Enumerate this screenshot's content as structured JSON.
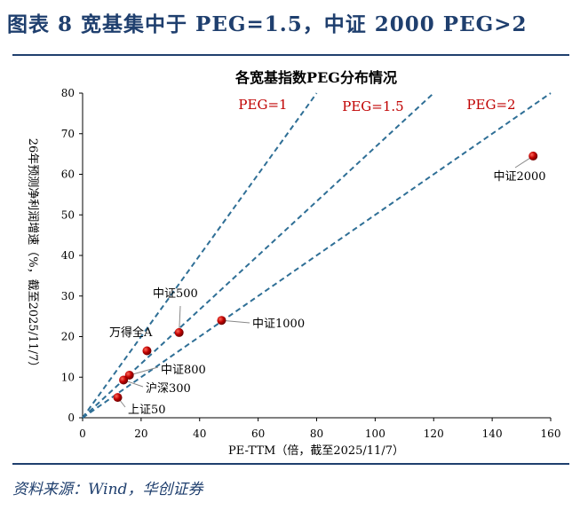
{
  "figure_title": "图表 8   宽基集中于 PEG=1.5，中证 2000 PEG>2",
  "source": "资料来源：Wind，华创证券",
  "chart_data": {
    "type": "scatter",
    "title": "各宽基指数PEG分布情况",
    "xlabel": "PE-TTM（倍，截至2025/11/7）",
    "ylabel": "26年预测净利润增速（%，截至2025/11/7）",
    "xlim": [
      0,
      160
    ],
    "ylim": [
      0,
      80
    ],
    "xticks": [
      0,
      20,
      40,
      60,
      80,
      100,
      120,
      140,
      160
    ],
    "yticks": [
      0,
      10,
      20,
      30,
      40,
      50,
      60,
      70,
      80
    ],
    "grid": false,
    "reference_lines": [
      {
        "label": "PEG=1",
        "peg": 1
      },
      {
        "label": "PEG=1.5",
        "peg": 1.5
      },
      {
        "label": "PEG=2",
        "peg": 2
      }
    ],
    "points": [
      {
        "name": "中证2000",
        "x": 154,
        "y": 64.5
      },
      {
        "name": "中证1000",
        "x": 47.5,
        "y": 24
      },
      {
        "name": "中证500",
        "x": 33,
        "y": 21
      },
      {
        "name": "万得全A",
        "x": 22,
        "y": 16.5
      },
      {
        "name": "中证800",
        "x": 16,
        "y": 10.5
      },
      {
        "name": "沪深300",
        "x": 14,
        "y": 9.3
      },
      {
        "name": "上证50",
        "x": 12,
        "y": 5
      }
    ],
    "colors": {
      "point": "#c00000",
      "reference_line": "#2f6f96",
      "label_red": "#c00000"
    }
  }
}
